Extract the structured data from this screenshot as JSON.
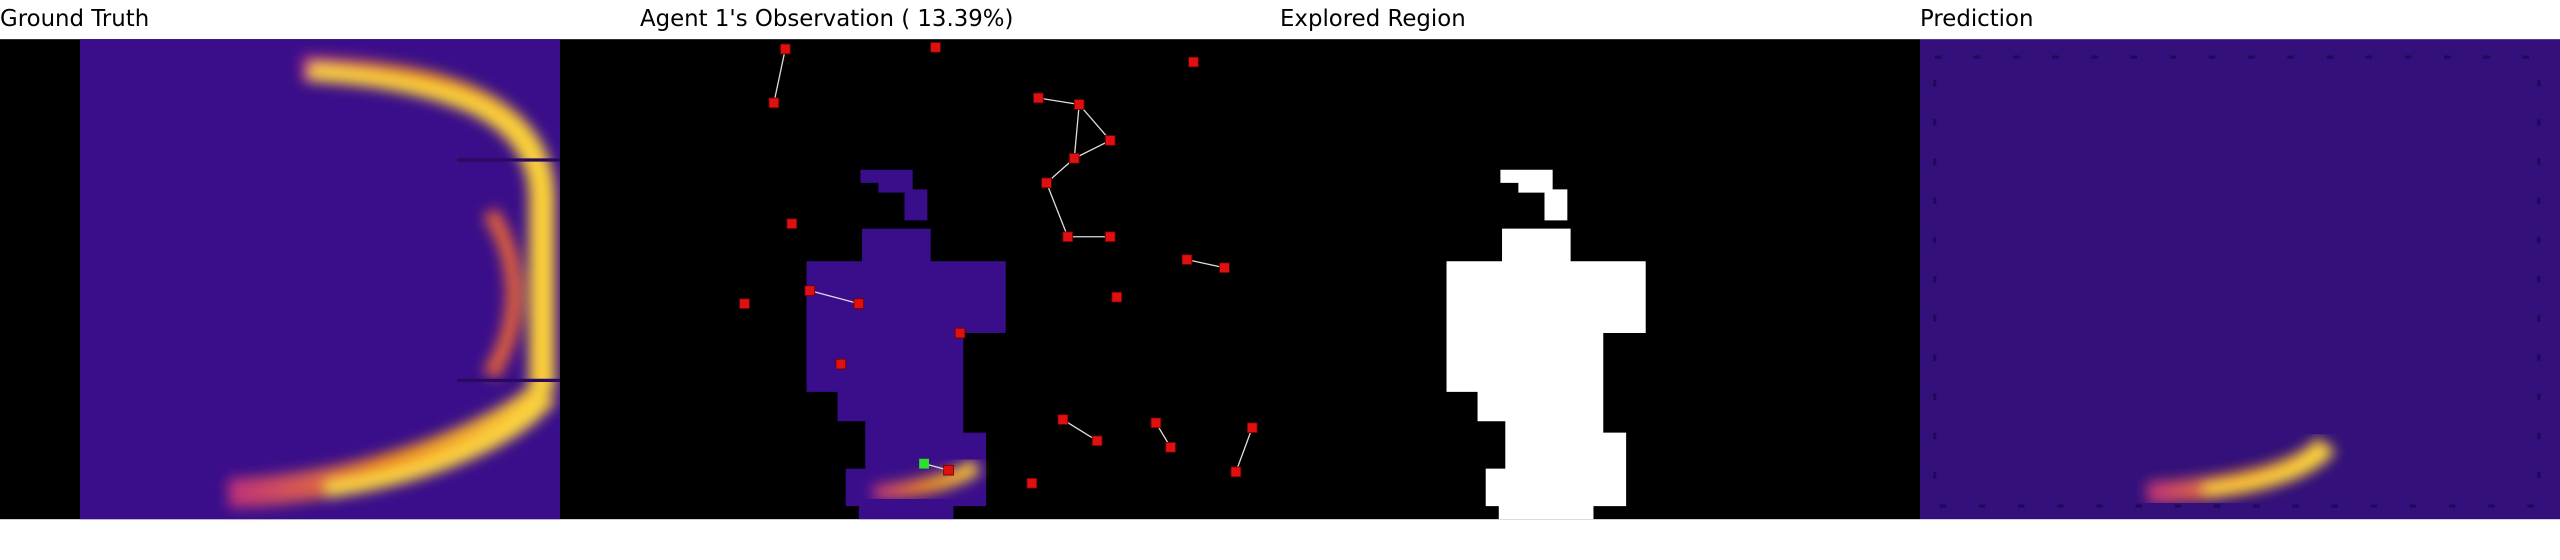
{
  "panels": [
    {
      "title": "Ground Truth"
    },
    {
      "title": "Agent 1's Observation ( 13.39%)"
    },
    {
      "title": "Explored Region"
    },
    {
      "title": "Prediction"
    }
  ]
}
